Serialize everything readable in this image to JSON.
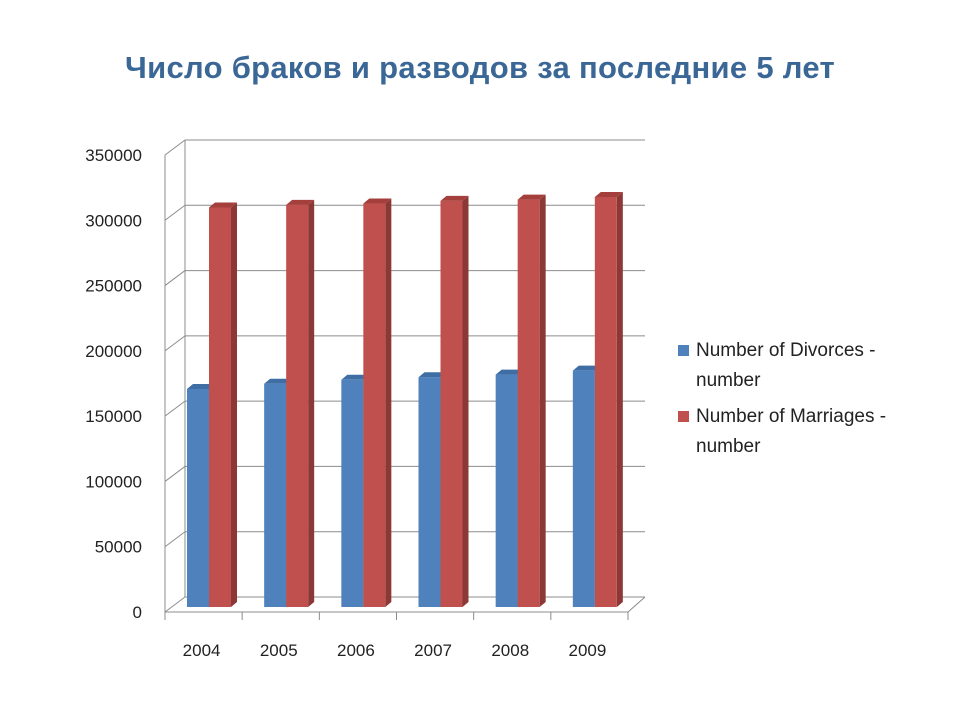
{
  "chart_data": {
    "type": "bar",
    "title": "Число браков и разводов за последние 5 лет",
    "categories": [
      "2004",
      "2005",
      "2006",
      "2007",
      "2008",
      "2009"
    ],
    "series": [
      {
        "name": "Number of Divorces - number",
        "color": "#4f81bd",
        "values": [
          167000,
          171000,
          174000,
          176000,
          178000,
          181000
        ]
      },
      {
        "name": "Number of Marriages - number",
        "color": "#c0504d",
        "values": [
          306000,
          308000,
          309000,
          311000,
          312000,
          314000
        ]
      }
    ],
    "yticks": [
      "0",
      "50000",
      "100000",
      "150000",
      "200000",
      "250000",
      "300000",
      "350000"
    ],
    "ylim": [
      0,
      350000
    ],
    "grid": true,
    "legend_position": "right",
    "xlabel": "",
    "ylabel": ""
  }
}
